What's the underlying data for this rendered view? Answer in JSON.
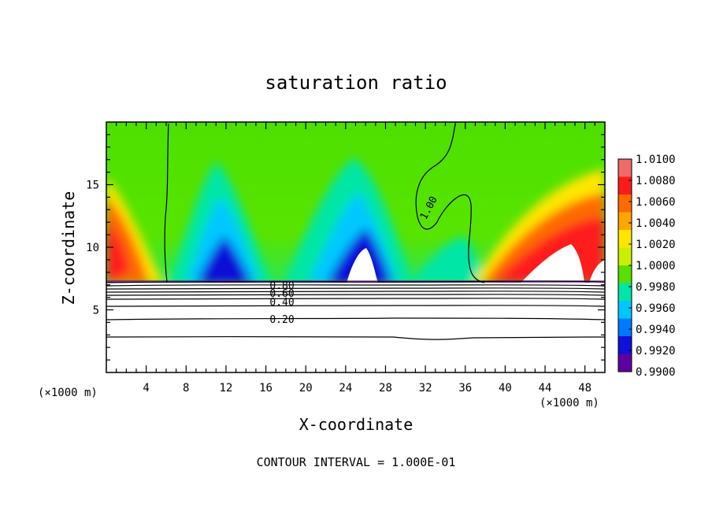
{
  "chart_data": {
    "type": "heatmap",
    "title": "saturation ratio",
    "xlabel": "X-coordinate",
    "ylabel": "Z-coordinate",
    "x_unit_left": "(×1000 m)",
    "x_unit_right": "(×1000 m)",
    "footer": "CONTOUR INTERVAL = 1.000E-01",
    "xlim": [
      0,
      50
    ],
    "ylim": [
      0,
      20
    ],
    "x_ticks": [
      4,
      8,
      12,
      16,
      20,
      24,
      28,
      32,
      36,
      40,
      44,
      48
    ],
    "y_ticks": [
      5,
      10,
      15
    ],
    "colorbar": {
      "ticks": [
        "1.0100",
        "1.0080",
        "1.0060",
        "1.0040",
        "1.0020",
        "1.0000",
        "0.9980",
        "0.9960",
        "0.9940",
        "0.9920",
        "0.9900"
      ],
      "colors": [
        "#f06a6a",
        "#ff1a1a",
        "#ff6a00",
        "#ffa500",
        "#ffe600",
        "#c8f000",
        "#58e000",
        "#00e6a6",
        "#00c8ff",
        "#0078ff",
        "#1010d8",
        "#6000a0"
      ],
      "range": [
        0.99,
        1.01
      ]
    },
    "contour_labels": [
      {
        "text": "1.00",
        "x": 33.0,
        "z": 13.6
      },
      {
        "text": "0.80",
        "x": 17.5,
        "z": 6.9
      },
      {
        "text": "0.60",
        "x": 17.5,
        "z": 6.3
      },
      {
        "text": "0.40",
        "x": 17.5,
        "z": 5.6
      },
      {
        "text": "0.20",
        "x": 17.5,
        "z": 4.1
      }
    ],
    "contour_lines_z": [
      7.3,
      7.0,
      6.6,
      6.3,
      6.0,
      5.6,
      5.1,
      4.3,
      2.8
    ],
    "cloud_base_z": 7.3
  }
}
